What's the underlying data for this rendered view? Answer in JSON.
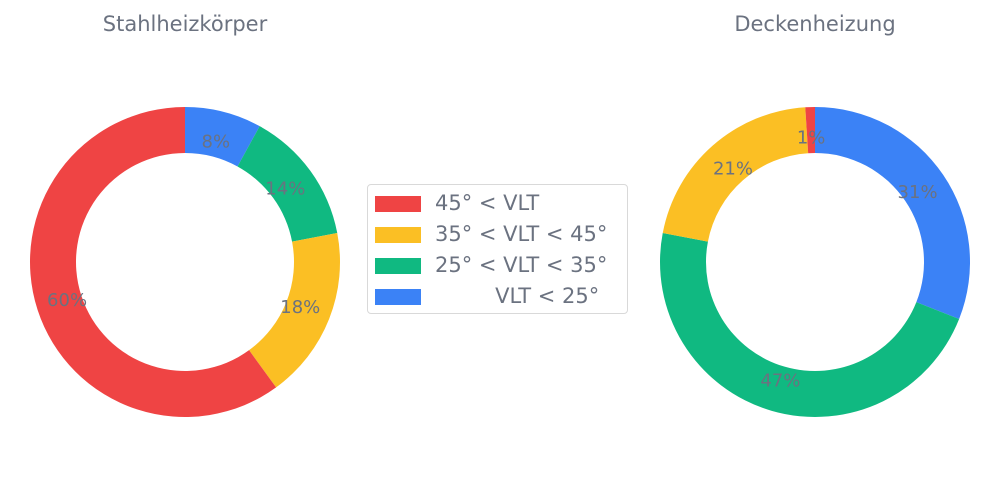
{
  "colors": {
    "text": "#6b7280",
    "red": "#ef4444",
    "yellow": "#fbbf24",
    "green": "#10b981",
    "blue": "#3b82f6"
  },
  "legend": [
    {
      "label": "45° < VLT",
      "color": "#ef4444"
    },
    {
      "label": "35° < VLT < 45°",
      "color": "#fbbf24"
    },
    {
      "label": "25° < VLT < 35°",
      "color": "#10b981"
    },
    {
      "label": "         VLT < 25°",
      "color": "#3b82f6"
    }
  ],
  "chart_data": [
    {
      "type": "pie",
      "title": "Stahlheizkörper",
      "categories": [
        "VLT < 25°",
        "25° < VLT < 35°",
        "35° < VLT < 45°",
        "45° < VLT"
      ],
      "values": [
        8,
        14,
        18,
        60
      ],
      "labels": [
        "8%",
        "14%",
        "18%",
        "60%"
      ],
      "colors": [
        "#3b82f6",
        "#10b981",
        "#fbbf24",
        "#ef4444"
      ],
      "style": "donut",
      "start": "top",
      "direction": "clockwise"
    },
    {
      "type": "pie",
      "title": "Deckenheizung",
      "categories": [
        "VLT < 25°",
        "25° < VLT < 35°",
        "35° < VLT < 45°",
        "45° < VLT"
      ],
      "values": [
        31,
        47,
        21,
        1
      ],
      "labels": [
        "31%",
        "47%",
        "21%",
        "1%"
      ],
      "colors": [
        "#3b82f6",
        "#10b981",
        "#fbbf24",
        "#ef4444"
      ],
      "style": "donut",
      "start": "top",
      "direction": "clockwise"
    }
  ]
}
